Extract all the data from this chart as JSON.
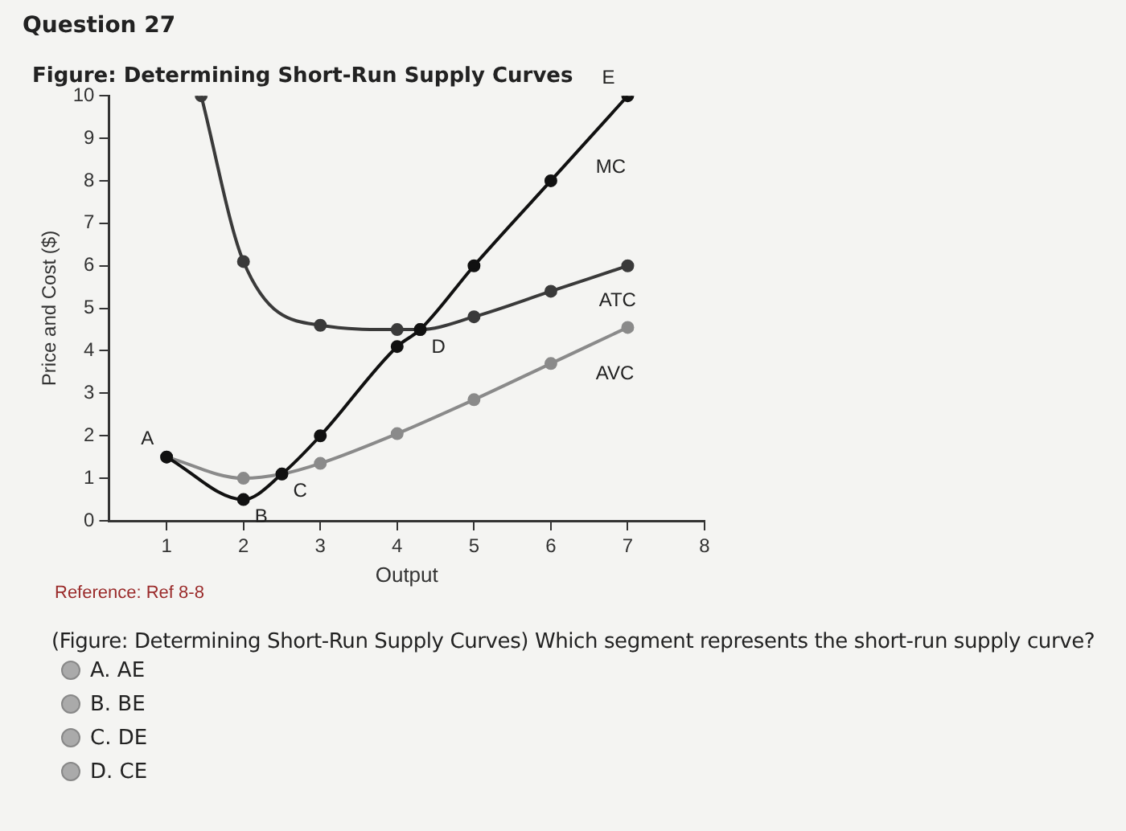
{
  "chart_data": {
    "type": "line",
    "title": "Figure: Determining Short-Run Supply Curves",
    "xlabel": "Output",
    "ylabel": "Price and Cost ($)",
    "xlim": [
      0.25,
      8
    ],
    "xticks": [
      1,
      2,
      3,
      4,
      5,
      6,
      7,
      8
    ],
    "ylim": [
      0,
      10
    ],
    "yticks": [
      0,
      1,
      2,
      3,
      4,
      5,
      6,
      7,
      8,
      9,
      10
    ],
    "grid": false,
    "legend": false,
    "marker": "circle",
    "line_style": "solid",
    "series": [
      {
        "name": "MC",
        "color": "#111111",
        "x": [
          1,
          2,
          2.5,
          3,
          4,
          4.3,
          5,
          6,
          7
        ],
        "values": [
          1.5,
          0.5,
          1.1,
          2,
          4.1,
          4.5,
          6,
          8,
          10
        ]
      },
      {
        "name": "ATC",
        "color": "#3a3a3a",
        "x": [
          1.45,
          2,
          3,
          4,
          4.3,
          5,
          6,
          7
        ],
        "values": [
          10,
          6.1,
          4.6,
          4.5,
          4.5,
          4.8,
          5.4,
          6
        ]
      },
      {
        "name": "AVC",
        "color": "#8a8a8a",
        "x": [
          1,
          2,
          2.5,
          3,
          4,
          5,
          6,
          7
        ],
        "values": [
          1.5,
          1,
          1.1,
          1.35,
          2.05,
          2.85,
          3.7,
          4.55
        ]
      }
    ],
    "annotations": [
      "Question 27",
      "Reference: Ref 8-8",
      "(Figure: Determining Short-Run Supply Curves) Which segment represents the short-run supply curve?",
      "A. AE",
      "B. BE",
      "C. DE",
      "D. CE",
      {
        "text": "A",
        "x": 1,
        "y": 1.5
      },
      {
        "text": "B",
        "x": 2,
        "y": 0.5
      },
      {
        "text": "C",
        "x": 2.5,
        "y": 1.1
      },
      {
        "text": "D",
        "x": 4.3,
        "y": 4.5
      },
      {
        "text": "E",
        "x": 7,
        "y": 10
      }
    ]
  }
}
